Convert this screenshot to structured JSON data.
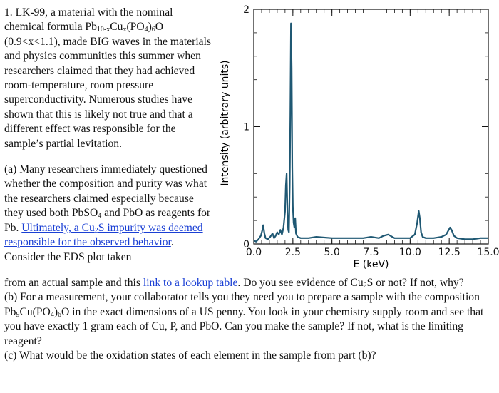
{
  "problem": {
    "intro_1": "1. LK-99, a material with the nominal chemical formula Pb",
    "intro_sub1": "10-x",
    "intro_2": "Cu",
    "intro_sub2": "x",
    "intro_3": "(PO",
    "intro_sub3": "4",
    "intro_4": ")",
    "intro_sub4": "6",
    "intro_5": "O (0.9<x<1.1), made BIG waves in the materials and physics communities this summer when researchers claimed that they had achieved room-temperature, room pressure superconductivity. Numerous studies have shown that this is likely not true and that a different effect was responsible for the sample’s partial levitation.",
    "a_1": "(a) Many researchers immediately questioned whether the composition and purity was what the researchers claimed especially because they used both PbSO",
    "a_sub1": "4",
    "a_2": " and PbO as reagents for Pb. ",
    "a_link_1": "Ultimately, a Cu",
    "a_link_sub": "2",
    "a_link_2": "S impurity was deemed responsible for the observed behavior",
    "a_3": ". Consider the EDS plot taken",
    "a_4": "from an actual sample and this ",
    "a_link2": "link to a lookup table",
    "a_5": ". Do you see evidence of Cu",
    "a_sub2": "2",
    "a_6": "S or not? If not, why?",
    "b_1": "(b) For a measurement, your collaborator tells you they need you to prepare a sample with the composition Pb",
    "b_sub1": "9",
    "b_2": "Cu(PO",
    "b_sub2": "4",
    "b_3": ")",
    "b_sub3": "6",
    "b_4": "O in the exact dimensions of a US penny. You look in your chemistry supply room and see that you have exactly 1 gram each of Cu, P, and PbO. Can you make the sample? If not, what is the limiting reagent?",
    "c_1": "(c) What would be the oxidation states of each element in the sample from part (b)?"
  },
  "chart_data": {
    "type": "line",
    "xlabel": "E (keV)",
    "ylabel": "Intensity (arbitrary units)",
    "xlim": [
      0,
      15
    ],
    "ylim": [
      0,
      2
    ],
    "x_ticks": [
      "0.0",
      "2.5",
      "5.0",
      "7.5",
      "10.0",
      "12.5",
      "15.0"
    ],
    "y_ticks": [
      "0",
      "1",
      "2"
    ],
    "line_color": "#1f5873",
    "series": [
      {
        "x": [
          0.0,
          0.15,
          0.3,
          0.45,
          0.55,
          0.6,
          0.68,
          0.75,
          0.9,
          1.05,
          1.2,
          1.3,
          1.4,
          1.5,
          1.6,
          1.7,
          1.8,
          1.9,
          2.0,
          2.05,
          2.1,
          2.15,
          2.2,
          2.25,
          2.3,
          2.34,
          2.38,
          2.42,
          2.46,
          2.5,
          2.55,
          2.6,
          2.65,
          2.7,
          2.8,
          3.0,
          3.5,
          4.0,
          5.0,
          6.0,
          7.0,
          7.5,
          8.0,
          8.3,
          8.6,
          9.0,
          9.5,
          10.0,
          10.3,
          10.45,
          10.55,
          10.62,
          10.7,
          10.8,
          11.0,
          11.5,
          12.0,
          12.3,
          12.55,
          12.65,
          12.8,
          13.0,
          13.5,
          14.0,
          14.5,
          15.0
        ],
        "y": [
          0.03,
          0.02,
          0.04,
          0.07,
          0.12,
          0.16,
          0.09,
          0.05,
          0.04,
          0.06,
          0.09,
          0.05,
          0.07,
          0.1,
          0.08,
          0.12,
          0.08,
          0.14,
          0.28,
          0.5,
          0.6,
          0.28,
          0.12,
          0.1,
          0.5,
          1.1,
          1.88,
          1.5,
          0.65,
          0.32,
          0.18,
          0.14,
          0.22,
          0.09,
          0.06,
          0.05,
          0.05,
          0.06,
          0.05,
          0.05,
          0.05,
          0.06,
          0.05,
          0.07,
          0.08,
          0.05,
          0.05,
          0.05,
          0.08,
          0.18,
          0.28,
          0.22,
          0.1,
          0.06,
          0.05,
          0.05,
          0.06,
          0.08,
          0.14,
          0.12,
          0.07,
          0.05,
          0.04,
          0.04,
          0.05,
          0.05
        ]
      }
    ]
  }
}
